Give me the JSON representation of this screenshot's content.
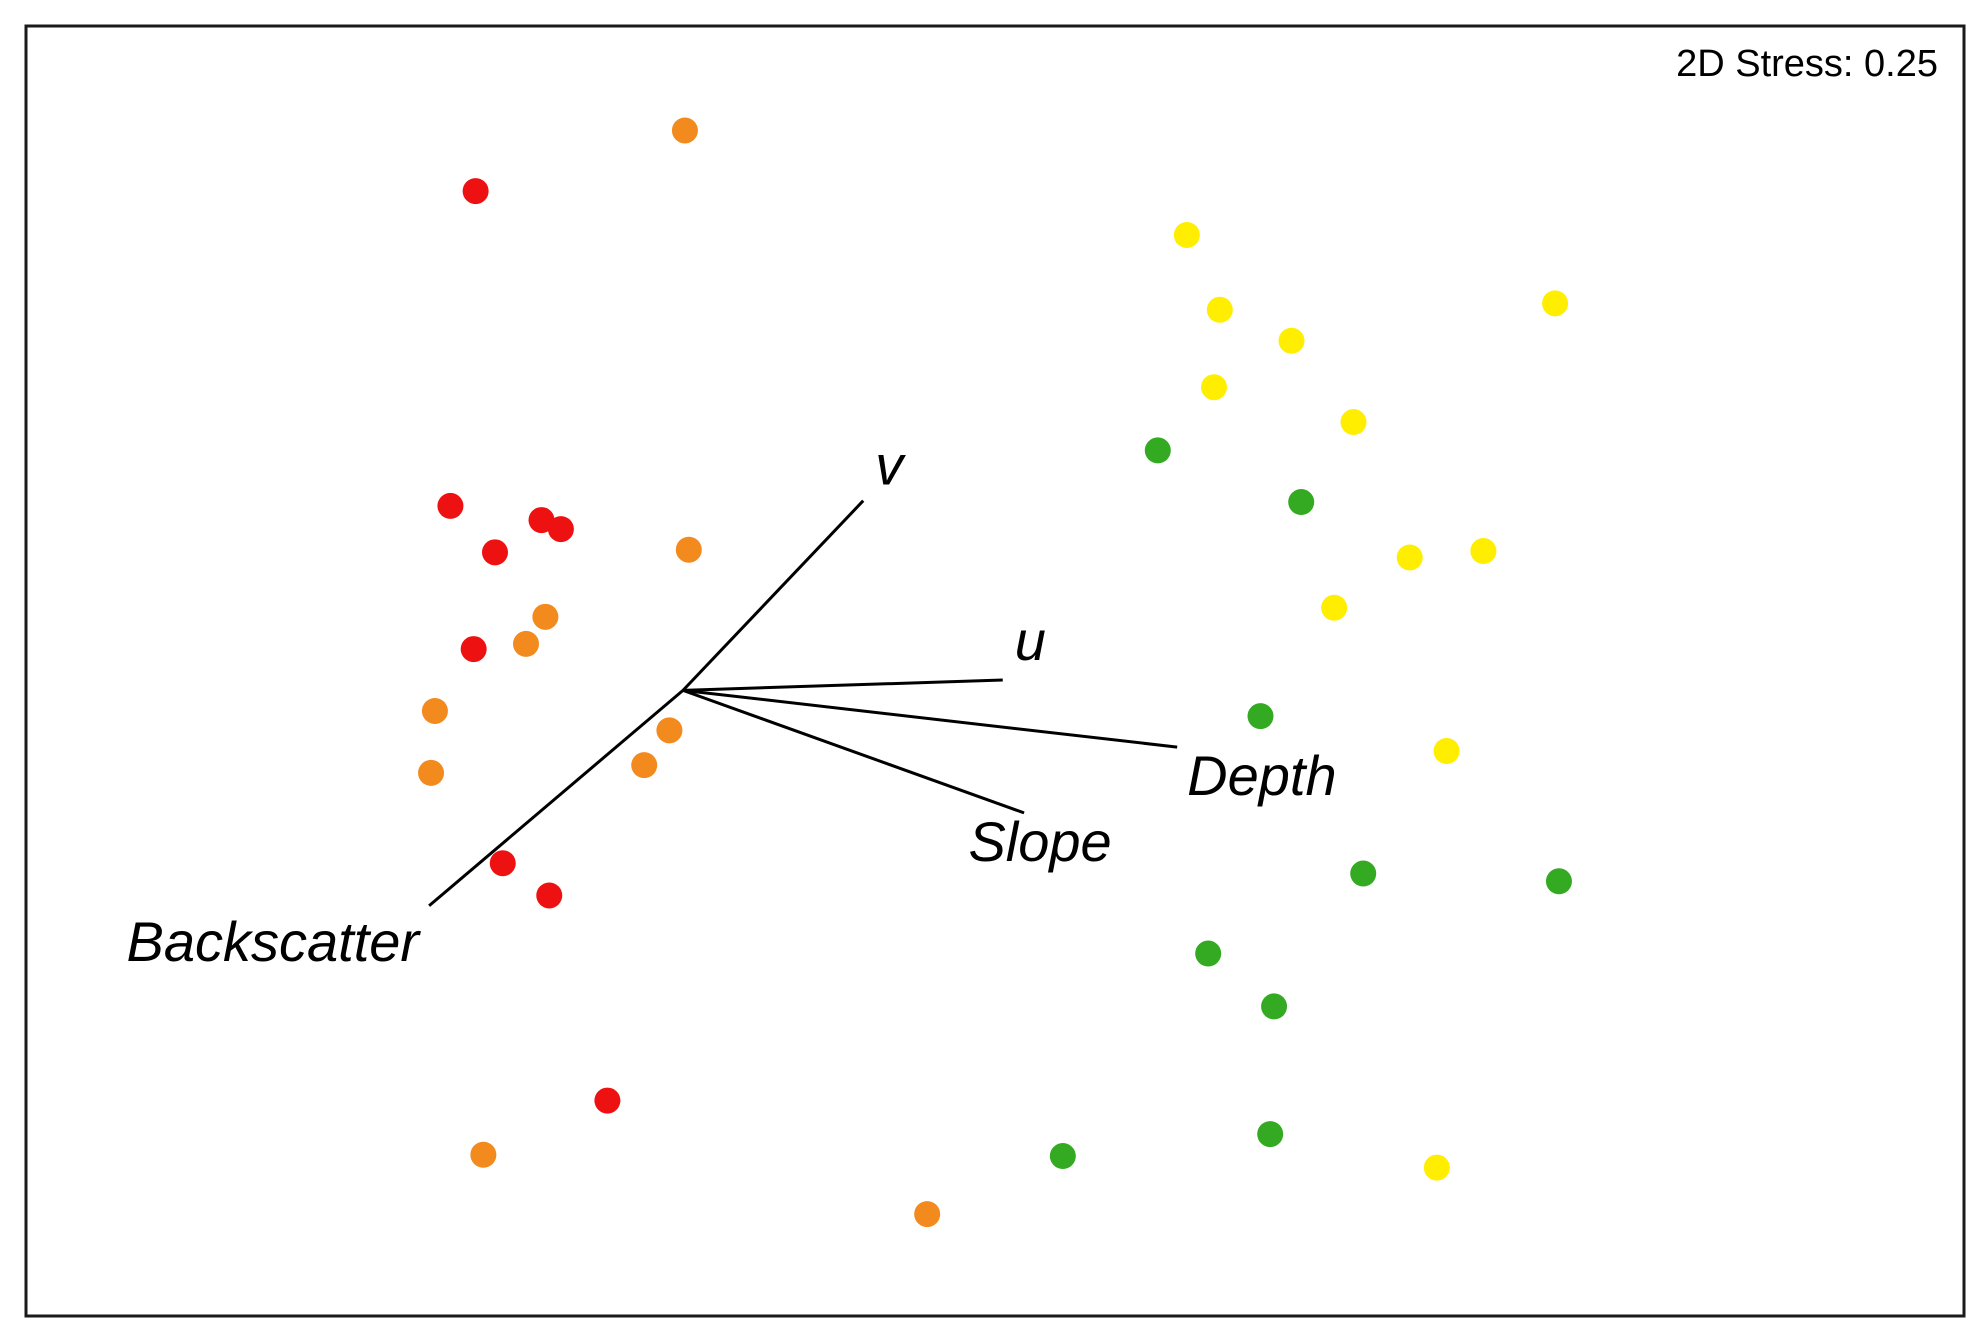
{
  "chart_data": {
    "type": "scatter",
    "stress_label": "2D Stress: 0.25",
    "grid": false,
    "xlim": [
      0,
      1
    ],
    "ylim": [
      0,
      1
    ],
    "colors": {
      "red": "#ee1111",
      "orange": "#f28a1e",
      "yellow": "#ffee00",
      "green": "#33aa22"
    },
    "points": [
      {
        "x": 0.34,
        "y": 0.919,
        "color": "orange"
      },
      {
        "x": 0.232,
        "y": 0.872,
        "color": "red"
      },
      {
        "x": 0.599,
        "y": 0.838,
        "color": "yellow"
      },
      {
        "x": 0.616,
        "y": 0.78,
        "color": "yellow"
      },
      {
        "x": 0.653,
        "y": 0.756,
        "color": "yellow"
      },
      {
        "x": 0.789,
        "y": 0.785,
        "color": "yellow"
      },
      {
        "x": 0.613,
        "y": 0.72,
        "color": "yellow"
      },
      {
        "x": 0.584,
        "y": 0.671,
        "color": "green"
      },
      {
        "x": 0.685,
        "y": 0.693,
        "color": "yellow"
      },
      {
        "x": 0.219,
        "y": 0.628,
        "color": "red"
      },
      {
        "x": 0.266,
        "y": 0.617,
        "color": "red"
      },
      {
        "x": 0.276,
        "y": 0.61,
        "color": "red"
      },
      {
        "x": 0.242,
        "y": 0.592,
        "color": "red"
      },
      {
        "x": 0.342,
        "y": 0.594,
        "color": "orange"
      },
      {
        "x": 0.658,
        "y": 0.631,
        "color": "green"
      },
      {
        "x": 0.714,
        "y": 0.588,
        "color": "yellow"
      },
      {
        "x": 0.752,
        "y": 0.593,
        "color": "yellow"
      },
      {
        "x": 0.268,
        "y": 0.542,
        "color": "orange"
      },
      {
        "x": 0.675,
        "y": 0.549,
        "color": "yellow"
      },
      {
        "x": 0.258,
        "y": 0.521,
        "color": "orange"
      },
      {
        "x": 0.231,
        "y": 0.517,
        "color": "red"
      },
      {
        "x": 0.211,
        "y": 0.469,
        "color": "orange"
      },
      {
        "x": 0.332,
        "y": 0.454,
        "color": "orange"
      },
      {
        "x": 0.637,
        "y": 0.465,
        "color": "green"
      },
      {
        "x": 0.209,
        "y": 0.421,
        "color": "orange"
      },
      {
        "x": 0.319,
        "y": 0.427,
        "color": "orange"
      },
      {
        "x": 0.733,
        "y": 0.438,
        "color": "yellow"
      },
      {
        "x": 0.246,
        "y": 0.351,
        "color": "red"
      },
      {
        "x": 0.27,
        "y": 0.326,
        "color": "red"
      },
      {
        "x": 0.69,
        "y": 0.343,
        "color": "green"
      },
      {
        "x": 0.791,
        "y": 0.337,
        "color": "green"
      },
      {
        "x": 0.61,
        "y": 0.281,
        "color": "green"
      },
      {
        "x": 0.644,
        "y": 0.24,
        "color": "green"
      },
      {
        "x": 0.3,
        "y": 0.167,
        "color": "red"
      },
      {
        "x": 0.642,
        "y": 0.141,
        "color": "green"
      },
      {
        "x": 0.728,
        "y": 0.115,
        "color": "yellow"
      },
      {
        "x": 0.236,
        "y": 0.125,
        "color": "orange"
      },
      {
        "x": 0.535,
        "y": 0.124,
        "color": "green"
      },
      {
        "x": 0.465,
        "y": 0.079,
        "color": "orange"
      }
    ],
    "vectors": {
      "origin": {
        "x": 0.339,
        "y": 0.485
      },
      "items": [
        {
          "name": "v",
          "x": 0.432,
          "y": 0.632
        },
        {
          "name": "u",
          "x": 0.504,
          "y": 0.493
        },
        {
          "name": "Depth",
          "x": 0.594,
          "y": 0.441
        },
        {
          "name": "Slope",
          "x": 0.515,
          "y": 0.39
        },
        {
          "name": "Backscatter",
          "x": 0.208,
          "y": 0.318
        }
      ]
    }
  }
}
